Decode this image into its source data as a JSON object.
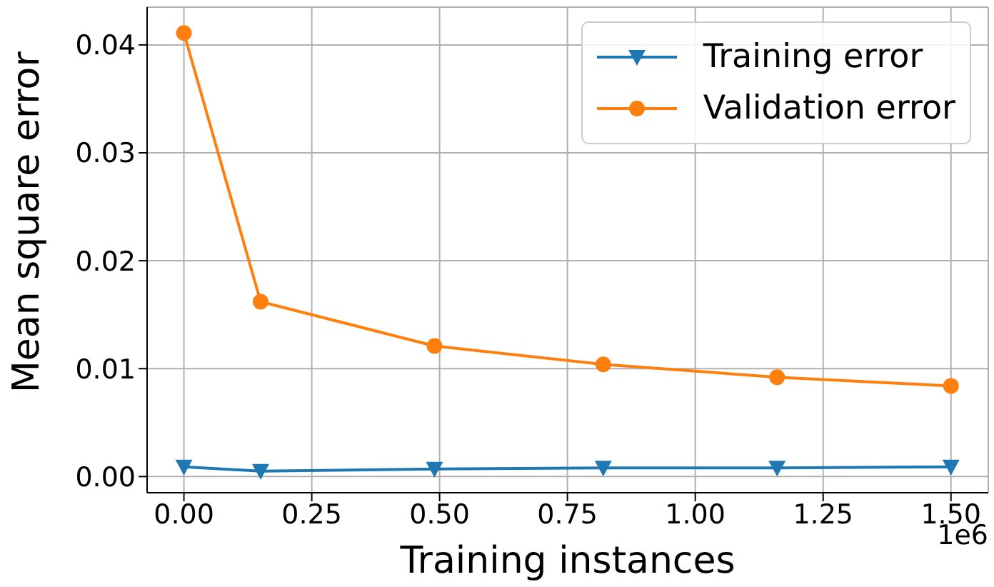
{
  "chart_data": {
    "type": "line",
    "xlabel": "Training instances",
    "ylabel": "Mean square error",
    "x": [
      0,
      0.15,
      0.49,
      0.82,
      1.16,
      1.5
    ],
    "series": [
      {
        "name": "Training error",
        "color": "#1f77b4",
        "marker": "triangle",
        "values": [
          0.0009,
          0.0005,
          0.0007,
          0.0008,
          0.0008,
          0.0009
        ]
      },
      {
        "name": "Validation error",
        "color": "#ff7f0e",
        "marker": "circle",
        "values": [
          0.0411,
          0.0162,
          0.0121,
          0.0104,
          0.0092,
          0.0084
        ]
      }
    ],
    "xlim": [
      -0.072,
      1.573
    ],
    "xticks": [
      {
        "value": 0,
        "label": "0.00"
      },
      {
        "value": 0.25,
        "label": "0.25"
      },
      {
        "value": 0.5,
        "label": "0.50"
      },
      {
        "value": 0.75,
        "label": "0.75"
      },
      {
        "value": 1,
        "label": "1.00"
      },
      {
        "value": 1.25,
        "label": "1.25"
      },
      {
        "value": 1.5,
        "label": "1.50"
      }
    ],
    "ylim": [
      -0.0015,
      0.0435
    ],
    "yticks": [
      {
        "value": 0,
        "label": "0.00"
      },
      {
        "value": 0.01,
        "label": "0.01"
      },
      {
        "value": 0.02,
        "label": "0.02"
      },
      {
        "value": 0.03,
        "label": "0.03"
      },
      {
        "value": 0.04,
        "label": "0.04"
      }
    ],
    "annotations": [
      "1e6"
    ],
    "grid": true,
    "legend": "top right",
    "line_style": "solid"
  }
}
